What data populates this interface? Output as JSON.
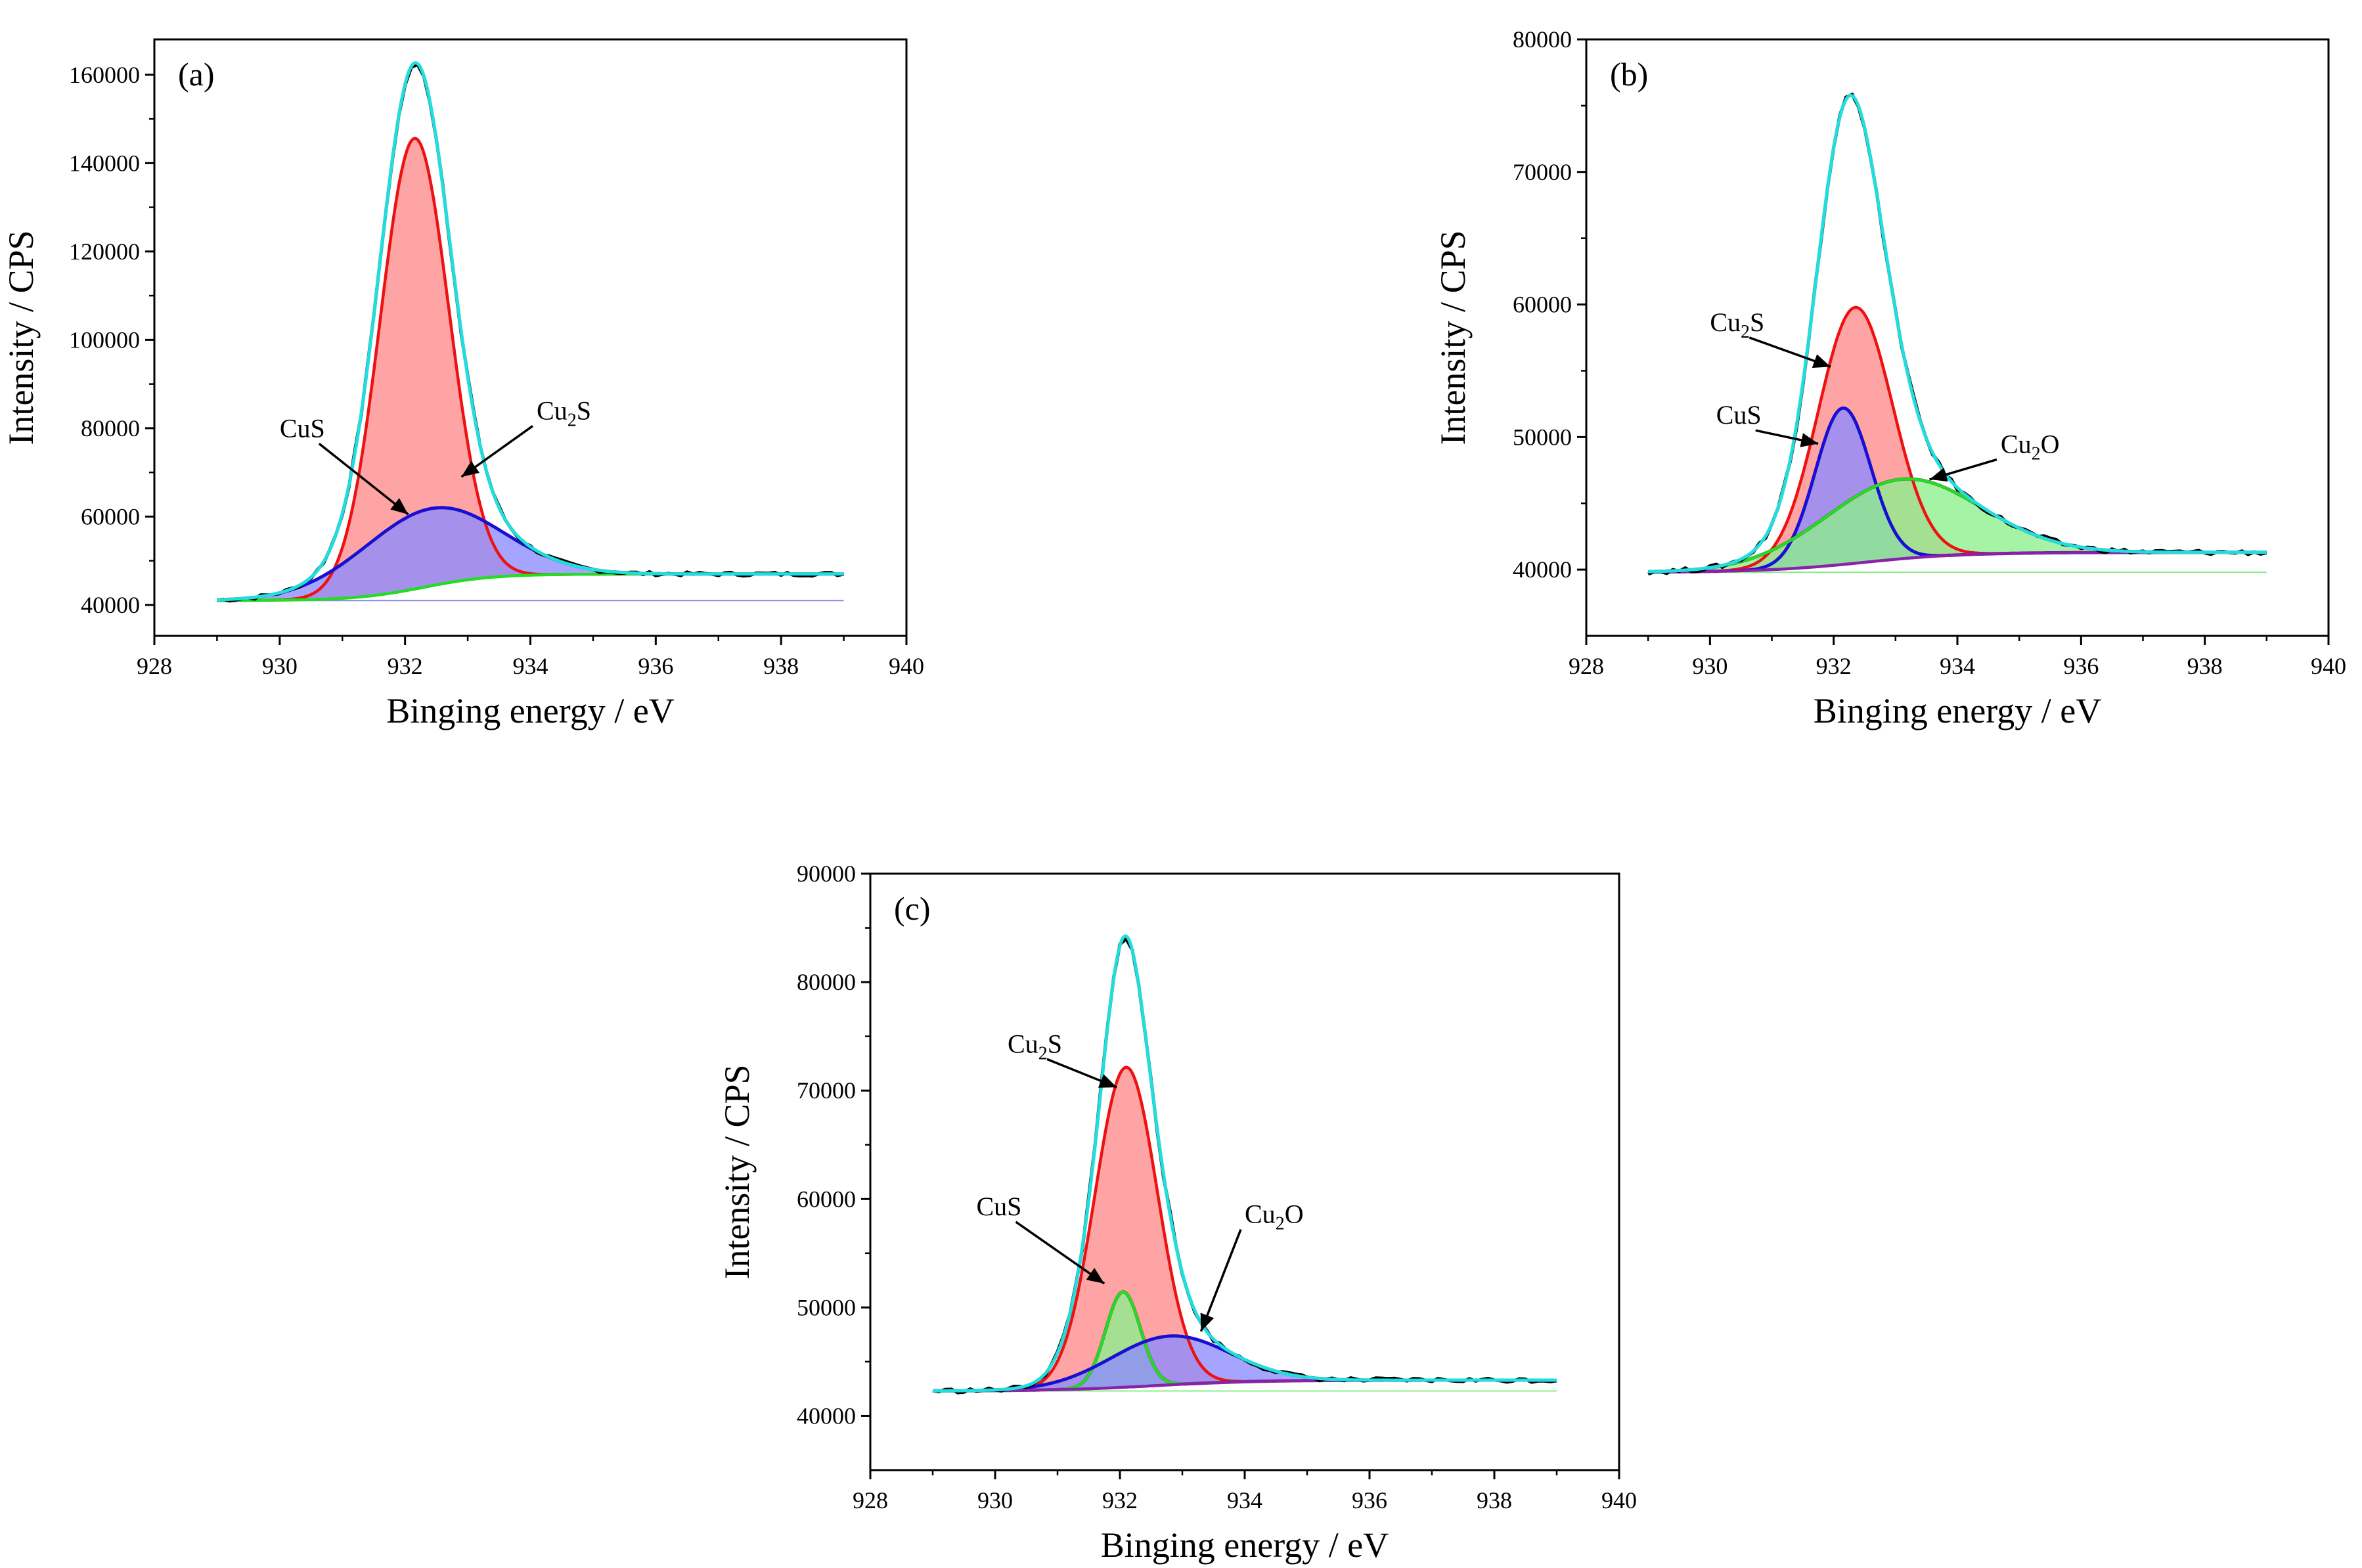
{
  "chart_data": [
    {
      "type": "area",
      "panel": "(a)",
      "xlabel": "Binging energy / eV",
      "ylabel": "Intensity / CPS",
      "xlim": [
        928,
        940
      ],
      "ylim": [
        33000,
        168000
      ],
      "xticks": [
        928,
        930,
        932,
        934,
        936,
        938,
        940
      ],
      "yticks": [
        40000,
        60000,
        80000,
        100000,
        120000,
        140000,
        160000
      ],
      "grid": false,
      "x_range": [
        929,
        939
      ],
      "background": {
        "start": 41000,
        "end": 47000,
        "center": 932.3,
        "width": 0.55,
        "color": "#22dd22"
      },
      "peaks": [
        {
          "name": "Cu2S",
          "label_main": "Cu",
          "label_sub": "2",
          "label_tail": "S",
          "center": 932.15,
          "amplitude": 102000,
          "sigma": 0.55,
          "line": "#ee1111",
          "fill": "#ff8a8a",
          "dark_edge": false
        },
        {
          "name": "CuS",
          "label_main": "CuS",
          "label_sub": "",
          "label_tail": "",
          "center": 932.4,
          "amplitude": 17500,
          "sigma": 1.1,
          "line": "#1111dd",
          "fill": "#8c8cff",
          "dark_edge": true
        }
      ],
      "offset_line": {
        "value": 41000,
        "color": "#8888ee"
      },
      "raw_color": "#000000",
      "envelope_color": "#22dddd",
      "noise": 450,
      "annotations": [
        {
          "target": "CuS",
          "text_x": 930.0,
          "text_y": 78000,
          "arrow_to": [
            932.05,
            60500
          ]
        },
        {
          "target": "Cu2S",
          "text_x": 934.1,
          "text_y": 82000,
          "arrow_to": [
            932.9,
            69000
          ]
        }
      ]
    },
    {
      "type": "area",
      "panel": "(b)",
      "xlabel": "Binging energy / eV",
      "ylabel": "Intensity / CPS",
      "xlim": [
        928,
        940
      ],
      "ylim": [
        35000,
        80000
      ],
      "xticks": [
        928,
        930,
        932,
        934,
        936,
        938,
        940
      ],
      "yticks": [
        40000,
        50000,
        60000,
        70000,
        80000
      ],
      "grid": false,
      "x_range": [
        929,
        939
      ],
      "background": {
        "start": 39800,
        "end": 41300,
        "center": 932.5,
        "width": 0.8,
        "color": "#8822aa"
      },
      "peaks": [
        {
          "name": "Cu2S",
          "label_main": "Cu",
          "label_sub": "2",
          "label_tail": "S",
          "center": 932.35,
          "amplitude": 19300,
          "sigma": 0.6,
          "line": "#ee1111",
          "fill": "#ff8a8a",
          "dark_edge": false
        },
        {
          "name": "CuS",
          "label_main": "CuS",
          "label_sub": "",
          "label_tail": "",
          "center": 932.15,
          "amplitude": 11800,
          "sigma": 0.45,
          "line": "#1111dd",
          "fill": "#8c8cff",
          "dark_edge": true
        },
        {
          "name": "Cu2O",
          "label_main": "Cu",
          "label_sub": "2",
          "label_tail": "O",
          "center": 933.1,
          "amplitude": 6000,
          "sigma": 1.25,
          "line": "#22dd22",
          "fill": "#8cf08c",
          "dark_edge": true
        }
      ],
      "offset_line": {
        "value": 39800,
        "color": "#88ee88"
      },
      "raw_color": "#000000",
      "envelope_color": "#22dddd",
      "noise": 180,
      "annotations": [
        {
          "target": "Cu2S",
          "text_x": 930.0,
          "text_y": 58000,
          "arrow_to": [
            931.95,
            55300
          ]
        },
        {
          "target": "CuS",
          "text_x": 930.1,
          "text_y": 51000,
          "arrow_to": [
            931.75,
            49500
          ]
        },
        {
          "target": "Cu2O",
          "text_x": 934.7,
          "text_y": 48800,
          "arrow_to": [
            933.55,
            46800
          ]
        }
      ]
    },
    {
      "type": "area",
      "panel": "(c)",
      "xlabel": "Binging energy / eV",
      "ylabel": "Intensity / CPS",
      "xlim": [
        928,
        940
      ],
      "ylim": [
        35000,
        90000
      ],
      "xticks": [
        928,
        930,
        932,
        934,
        936,
        938,
        940
      ],
      "yticks": [
        40000,
        50000,
        60000,
        70000,
        80000,
        90000
      ],
      "grid": false,
      "x_range": [
        929,
        939
      ],
      "background": {
        "start": 42300,
        "end": 43300,
        "center": 932.6,
        "width": 0.8,
        "color": "#8822aa"
      },
      "peaks": [
        {
          "name": "Cu2S",
          "label_main": "Cu",
          "label_sub": "2",
          "label_tail": "S",
          "center": 932.1,
          "amplitude": 29500,
          "sigma": 0.5,
          "line": "#ee1111",
          "fill": "#ff8a8a",
          "dark_edge": false
        },
        {
          "name": "CuS",
          "label_main": "CuS",
          "label_sub": "",
          "label_tail": "",
          "center": 932.05,
          "amplitude": 8800,
          "sigma": 0.28,
          "line": "#22dd22",
          "fill": "#8cf08c",
          "dark_edge": true
        },
        {
          "name": "Cu2O",
          "label_main": "Cu",
          "label_sub": "2",
          "label_tail": "O",
          "center": 932.8,
          "amplitude": 4500,
          "sigma": 0.95,
          "line": "#1111dd",
          "fill": "#8c8cff",
          "dark_edge": true
        }
      ],
      "offset_line": {
        "value": 42300,
        "color": "#88ee88"
      },
      "raw_color": "#000000",
      "envelope_color": "#22dddd",
      "noise": 200,
      "annotations": [
        {
          "target": "Cu2S",
          "text_x": 930.2,
          "text_y": 73500,
          "arrow_to": [
            931.95,
            70300
          ]
        },
        {
          "target": "CuS",
          "text_x": 929.7,
          "text_y": 58500,
          "arrow_to": [
            931.75,
            52200
          ]
        },
        {
          "target": "Cu2O",
          "text_x": 934.0,
          "text_y": 57800,
          "arrow_to": [
            933.3,
            47800
          ]
        }
      ]
    }
  ]
}
